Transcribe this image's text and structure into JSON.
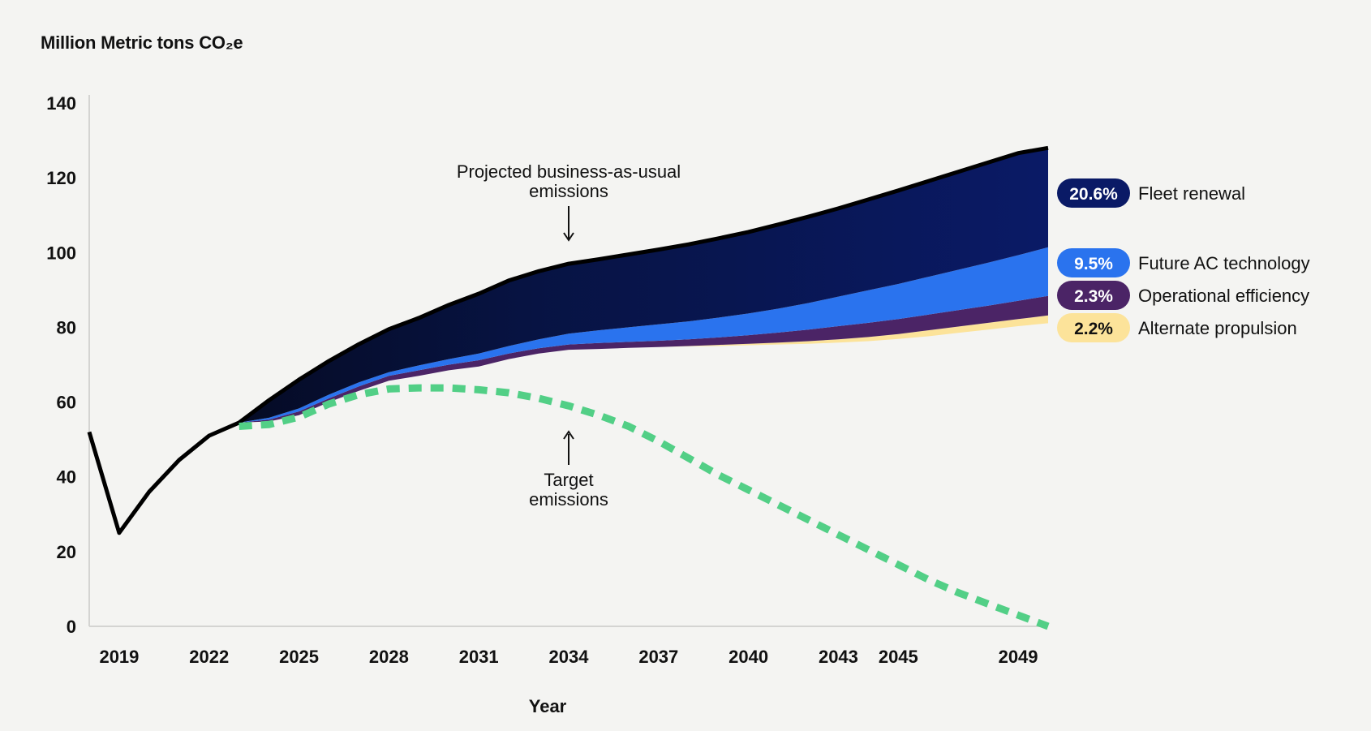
{
  "chart_data": {
    "type": "area",
    "title": "",
    "ylabel": "Million Metric tons CO₂e",
    "xlabel": "Year",
    "ylim": [
      0,
      140
    ],
    "yticks": [
      0,
      20,
      40,
      60,
      80,
      100,
      120,
      140
    ],
    "xlim": [
      2018,
      2050
    ],
    "xticks": [
      2019,
      2022,
      2025,
      2028,
      2031,
      2034,
      2037,
      2040,
      2043,
      2045,
      2049
    ],
    "grid": false,
    "historical": {
      "x": [
        2018,
        2019,
        2020,
        2021,
        2022,
        2023
      ],
      "y": [
        52,
        25,
        36,
        44.5,
        51,
        54.5
      ]
    },
    "layers_x": [
      2023,
      2024,
      2025,
      2026,
      2027,
      2028,
      2029,
      2030,
      2031,
      2032,
      2033,
      2034,
      2035,
      2036,
      2037,
      2038,
      2039,
      2040,
      2041,
      2042,
      2043,
      2044,
      2045,
      2046,
      2047,
      2048,
      2049,
      2050
    ],
    "series": [
      {
        "name": "Alternate propulsion",
        "label": "2.2%",
        "color": "#fce39a",
        "top": [
          54.5,
          54.8,
          56.5,
          60,
          63,
          65.7,
          67,
          68.5,
          69.5,
          71.5,
          73,
          74,
          74.2,
          74.5,
          74.7,
          75,
          75.3,
          75.6,
          75.9,
          76.3,
          76.8,
          77.4,
          78.2,
          79.2,
          80.2,
          81.2,
          82.2,
          83.2
        ],
        "bottom": [
          54.5,
          54.8,
          56.5,
          60,
          63,
          65.7,
          67,
          68.5,
          69.5,
          71.5,
          73,
          74,
          74.2,
          74.5,
          74.7,
          74.9,
          75.0,
          75.2,
          75.4,
          75.6,
          75.9,
          76.3,
          76.9,
          77.6,
          78.5,
          79.4,
          80.3,
          81.1
        ]
      },
      {
        "name": "Operational efficiency",
        "label": "2.3%",
        "color": "#4b2466",
        "top": [
          54.5,
          55.3,
          57.5,
          61,
          64.2,
          67,
          68.5,
          70,
          71.2,
          73,
          74.4,
          75.4,
          75.8,
          76.1,
          76.4,
          76.8,
          77.3,
          77.9,
          78.6,
          79.4,
          80.3,
          81.2,
          82.2,
          83.4,
          84.6,
          85.8,
          87.1,
          88.4
        ],
        "bottom": [
          54.5,
          54.8,
          56.5,
          60,
          63,
          65.7,
          67,
          68.5,
          69.5,
          71.5,
          73,
          74,
          74.2,
          74.5,
          74.7,
          75,
          75.3,
          75.6,
          75.9,
          76.3,
          76.8,
          77.4,
          78.2,
          79.2,
          80.2,
          81.2,
          82.2,
          83.2
        ]
      },
      {
        "name": "Future AC technology",
        "label": "9.5%",
        "color": "#2a73ee",
        "top": [
          54.5,
          55.8,
          58.3,
          62,
          65.3,
          68,
          69.8,
          71.5,
          73,
          75,
          76.8,
          78.3,
          79.2,
          80,
          80.8,
          81.6,
          82.6,
          83.7,
          85,
          86.5,
          88.2,
          89.9,
          91.6,
          93.5,
          95.4,
          97.3,
          99.3,
          101.4
        ],
        "bottom": [
          54.5,
          55.3,
          57.5,
          61,
          64.2,
          67,
          68.5,
          70,
          71.2,
          73,
          74.4,
          75.4,
          75.8,
          76.1,
          76.4,
          76.8,
          77.3,
          77.9,
          78.6,
          79.4,
          80.3,
          81.2,
          82.2,
          83.4,
          84.6,
          85.8,
          87.1,
          88.4
        ]
      },
      {
        "name": "Fleet renewal",
        "label": "20.6%",
        "color": "#0a1a66",
        "top": [
          54.5,
          60.5,
          66,
          71,
          75.5,
          79.5,
          82.5,
          86,
          89,
          92.5,
          95,
          97,
          98.2,
          99.5,
          100.8,
          102.2,
          103.8,
          105.5,
          107.5,
          109.6,
          111.8,
          114.2,
          116.6,
          119.1,
          121.6,
          124.1,
          126.6,
          128
        ]
      }
    ],
    "target": {
      "name": "Target emissions",
      "color": "#52cf86",
      "x": [
        2023,
        2024,
        2025,
        2026,
        2027,
        2028,
        2029,
        2030,
        2031,
        2032,
        2033,
        2034,
        2035,
        2036,
        2037,
        2038,
        2039,
        2040,
        2041,
        2042,
        2043,
        2044,
        2045,
        2046,
        2047,
        2048,
        2049,
        2050
      ],
      "y": [
        53.5,
        54,
        56,
        59.5,
        62,
        63.5,
        63.8,
        63.8,
        63.3,
        62.5,
        61,
        59,
        56.5,
        53.5,
        49.5,
        45,
        40.5,
        36.5,
        32.5,
        28.5,
        24.5,
        20.5,
        16.5,
        12.5,
        9,
        6,
        3,
        0
      ]
    },
    "annotations": [
      {
        "text": [
          "Projected business-as-usual",
          "emissions"
        ],
        "arrow": "down",
        "at_year": 2034,
        "at_value": 99
      },
      {
        "text": [
          "Target",
          "emissions"
        ],
        "arrow": "up",
        "at_year": 2034,
        "at_value": 57
      }
    ]
  }
}
